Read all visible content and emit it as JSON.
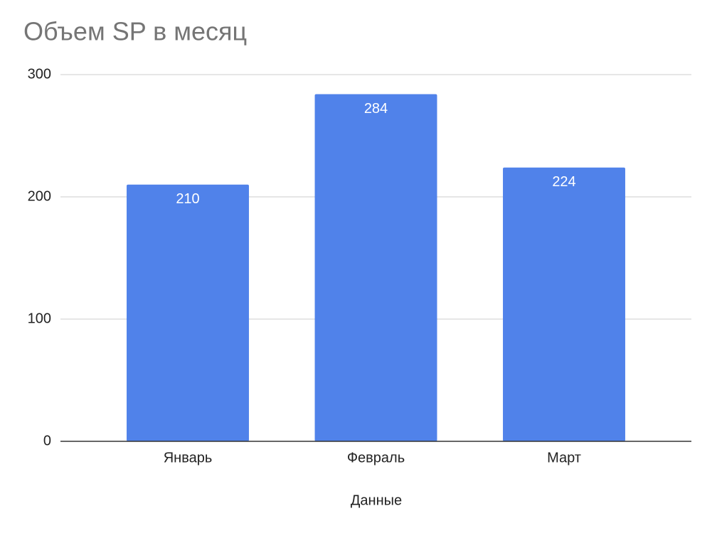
{
  "chart_data": {
    "type": "bar",
    "title": "Объем SP в месяц",
    "x_label": "Данные",
    "categories": [
      "Январь",
      "Февраль",
      "Март"
    ],
    "values": [
      210,
      284,
      224
    ],
    "color": "#5082ea",
    "ylim": [
      0,
      300
    ],
    "yticks": [
      0,
      100,
      200,
      300
    ],
    "grid": true
  }
}
